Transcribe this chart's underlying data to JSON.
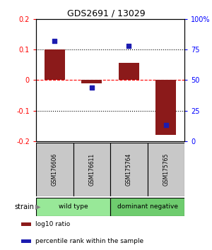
{
  "title": "GDS2691 / 13029",
  "samples": [
    "GSM176606",
    "GSM176611",
    "GSM175764",
    "GSM175765"
  ],
  "log10_ratio": [
    0.1,
    -0.01,
    0.055,
    -0.18
  ],
  "percentile_rank": [
    82,
    44,
    78,
    13
  ],
  "bar_color": "#8B1A1A",
  "dot_color": "#1C1CB0",
  "ylim_left": [
    -0.2,
    0.2
  ],
  "ylim_right": [
    0,
    100
  ],
  "yticks_left": [
    -0.2,
    -0.1,
    0,
    0.1,
    0.2
  ],
  "yticks_right": [
    0,
    25,
    50,
    75,
    100
  ],
  "ytick_labels_right": [
    "0",
    "25",
    "50",
    "75",
    "100%"
  ],
  "hlines": [
    0.1,
    0.0,
    -0.1
  ],
  "hline_styles": [
    "dotted",
    "dashed",
    "dotted"
  ],
  "hline_colors": [
    "black",
    "red",
    "black"
  ],
  "groups": [
    {
      "label": "wild type",
      "samples": [
        0,
        1
      ],
      "color": "#98E898"
    },
    {
      "label": "dominant negative",
      "samples": [
        2,
        3
      ],
      "color": "#6ECC6E"
    }
  ],
  "legend_items": [
    {
      "color": "#8B1A1A",
      "label": "log10 ratio"
    },
    {
      "color": "#1C1CB0",
      "label": "percentile rank within the sample"
    }
  ],
  "bar_width": 0.55,
  "sample_box_color": "#C8C8C8"
}
